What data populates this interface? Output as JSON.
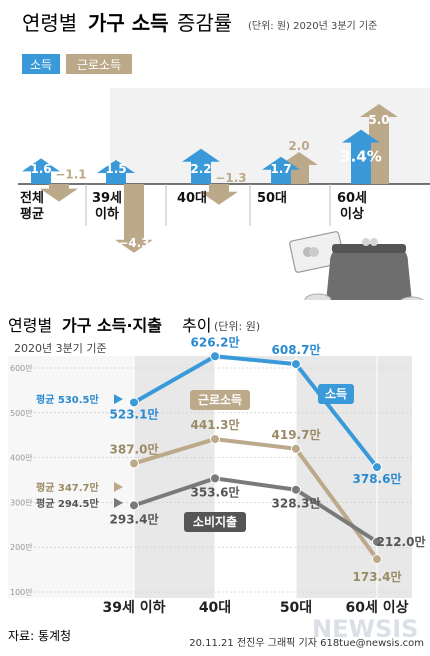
{
  "colors": {
    "income": "#3a9ad9",
    "labor": "#bba98a",
    "spend": "#7a7a7a",
    "plot_bg": "#e8e8e8",
    "band_bg": "#f7f7f7",
    "text_blue": "#2a8ad0",
    "text_tan": "#9b8a66"
  },
  "header": {
    "title_prefix": "연령별",
    "title_bold": "가구 소득",
    "title_suffix": "증감률",
    "unit": "(단위: 원) 2020년 3분기 기준"
  },
  "top_legend": {
    "income": "소득",
    "labor": "근로소득"
  },
  "chart_data": [
    {
      "type": "bar",
      "title": "연령별 가구 소득 증감률",
      "unit_note": "(단위: 원) 2020년 3분기 기준",
      "categories": [
        "전체 평균",
        "39세 이하",
        "40대",
        "50대",
        "60세 이상"
      ],
      "series": [
        {
          "name": "소득",
          "values": [
            1.6,
            1.5,
            2.2,
            1.7,
            3.4
          ]
        },
        {
          "name": "근로소득",
          "values": [
            -1.1,
            -4.3,
            -1.3,
            2.0,
            5.0
          ]
        }
      ]
    },
    {
      "type": "line",
      "title": "연령별 가구 소득·지출 추이",
      "unit_note": "(단위: 원)",
      "subtitle": "2020년 3분기 기준",
      "categories": [
        "39세 이하",
        "40대",
        "50대",
        "60세 이상"
      ],
      "y_ticks": [
        "100만",
        "200만",
        "300만",
        "400만",
        "500만",
        "600만"
      ],
      "ylim": [
        100,
        600
      ],
      "series": [
        {
          "name": "소득",
          "values": [
            523.1,
            626.2,
            608.7,
            378.6
          ],
          "labels": [
            "523.1만",
            "626.2만",
            "608.7만",
            "378.6만"
          ],
          "average": 530.5,
          "average_label": "평균 530.5만"
        },
        {
          "name": "근로소득",
          "values": [
            387.0,
            441.3,
            419.7,
            173.4
          ],
          "labels": [
            "387.0만",
            "441.3만",
            "419.7만",
            "173.4만"
          ],
          "average": 347.7,
          "average_label": "평균 347.7만"
        },
        {
          "name": "소비지출",
          "values": [
            293.4,
            353.6,
            328.3,
            212.0
          ],
          "labels": [
            "293.4만",
            "353.6만",
            "328.3만",
            "212.0만"
          ],
          "average": 294.5,
          "average_label": "평균 294.5만"
        }
      ]
    }
  ],
  "bottom_title": {
    "prefix": "연령별",
    "bold": "가구 소득·지출",
    "suffix": "추이",
    "unit": "(단위: 원)",
    "subtitle": "2020년 3분기 기준"
  },
  "footer": {
    "source": "자료: 통계청",
    "credit": "20.11.21 전진우 그래픽 기자 618tue@newsis.com",
    "watermark": "NEWSIS"
  }
}
